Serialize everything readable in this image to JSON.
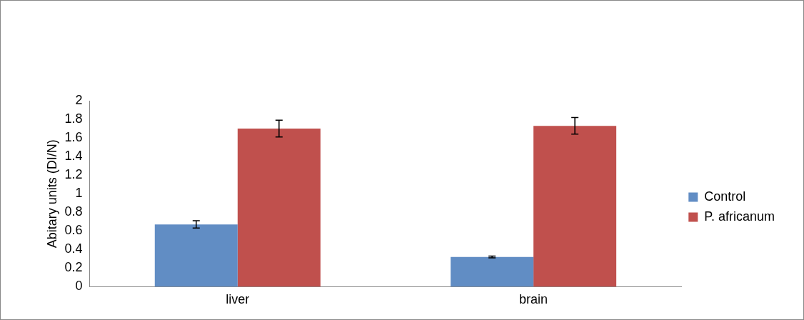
{
  "chart_data": {
    "type": "bar",
    "ylabel": "Abitary units (DI/N)",
    "categories": [
      "liver",
      "brain"
    ],
    "series": [
      {
        "name": "Control",
        "color": "#618dc4",
        "values": [
          0.67,
          0.32
        ],
        "errors": [
          0.04,
          0.01
        ]
      },
      {
        "name": "P. africanum",
        "color": "#c0504d",
        "values": [
          1.7,
          1.73
        ],
        "errors": [
          0.09,
          0.09
        ]
      }
    ],
    "ylim": [
      0,
      2
    ],
    "yticks": [
      0,
      0.2,
      0.4,
      0.6,
      0.8,
      1,
      1.2,
      1.4,
      1.6,
      1.8,
      2
    ],
    "grid": false,
    "legend": "right"
  }
}
